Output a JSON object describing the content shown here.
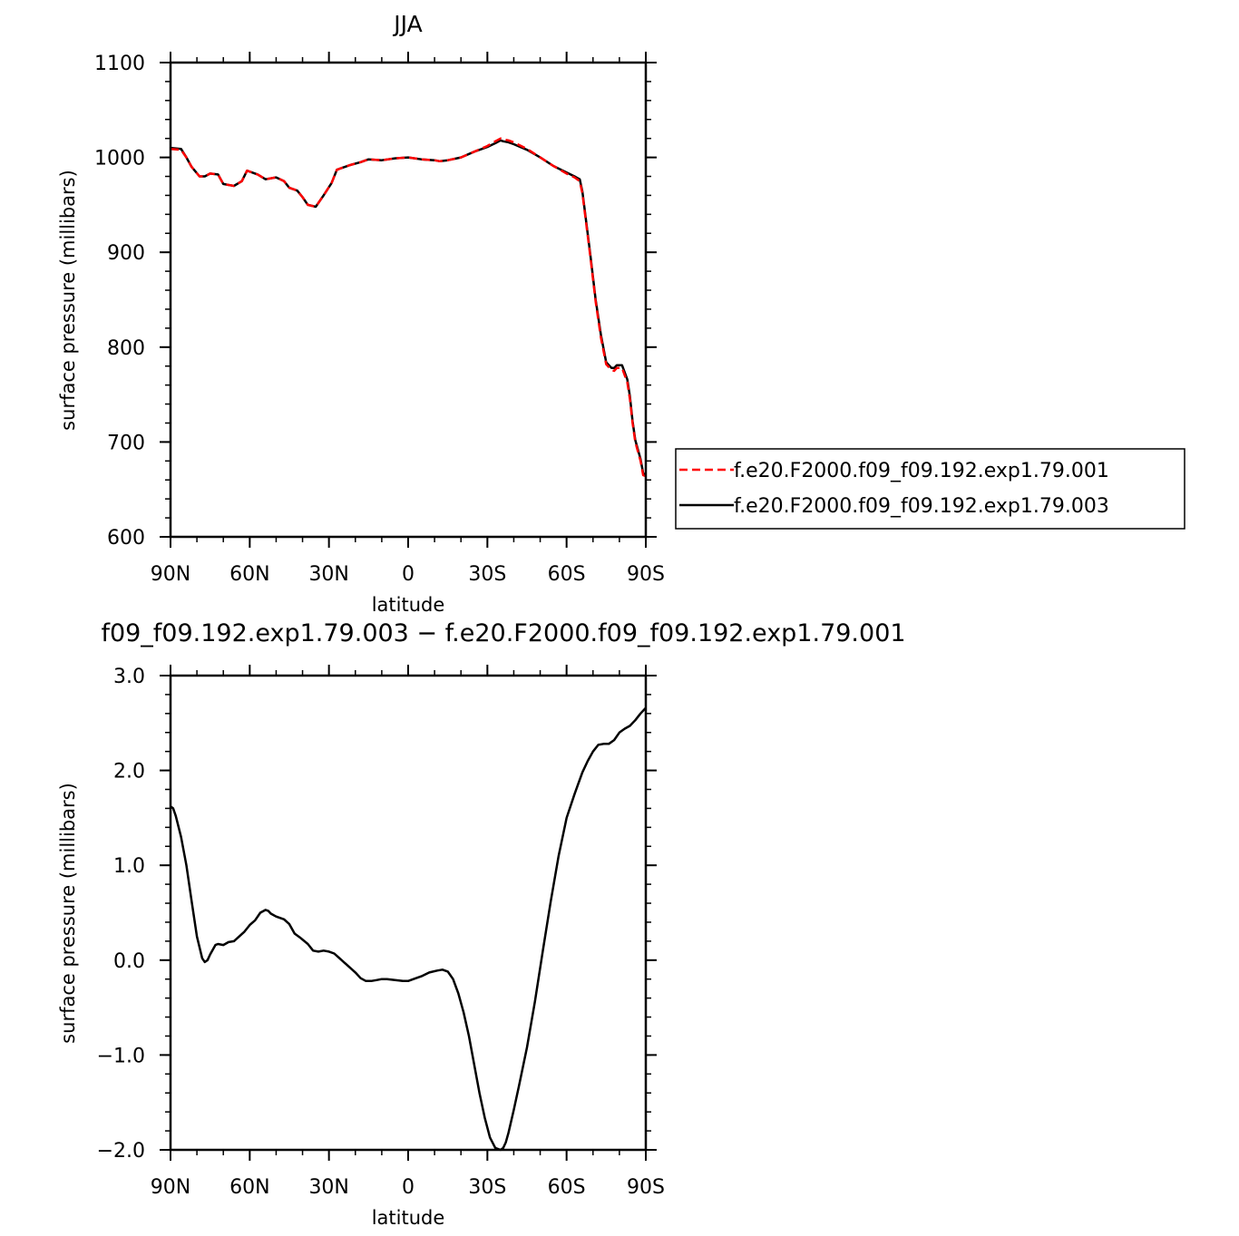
{
  "chart_data": [
    {
      "type": "line",
      "title": "JJA",
      "xlabel": "latitude",
      "ylabel": "surface pressure (millibars)",
      "xlim": [
        90,
        -90
      ],
      "ylim": [
        600,
        1100
      ],
      "xticks": [
        {
          "value": 90,
          "label": "90N"
        },
        {
          "value": 60,
          "label": "60N"
        },
        {
          "value": 30,
          "label": "30N"
        },
        {
          "value": 0,
          "label": "0"
        },
        {
          "value": -30,
          "label": "30S"
        },
        {
          "value": -60,
          "label": "60S"
        },
        {
          "value": -90,
          "label": "90S"
        }
      ],
      "yticks": [
        {
          "value": 600,
          "label": "600"
        },
        {
          "value": 700,
          "label": "700"
        },
        {
          "value": 800,
          "label": "800"
        },
        {
          "value": 900,
          "label": "900"
        },
        {
          "value": 1000,
          "label": "1000"
        },
        {
          "value": 1100,
          "label": "1100"
        }
      ],
      "legend_position": "right",
      "series": [
        {
          "name": "f.e20.F2000.f09_f09.192.exp1.79.001",
          "color": "#ff0000",
          "style": "dashed",
          "x": [
            90,
            86,
            84,
            82,
            79,
            77,
            75,
            72,
            70,
            66,
            63,
            61,
            57,
            54,
            50,
            47,
            45,
            42,
            40,
            38,
            35,
            32,
            29,
            27,
            25,
            22,
            18,
            15,
            10,
            5,
            0,
            -5,
            -10,
            -12,
            -15,
            -20,
            -25,
            -30,
            -33,
            -35,
            -36,
            -38,
            -40,
            -45,
            -50,
            -55,
            -60,
            -63,
            -65,
            -66,
            -67,
            -69,
            -71,
            -73,
            -75,
            -77,
            -78,
            -79,
            -81,
            -83,
            -84,
            -85,
            -86,
            -88,
            -89,
            -90
          ],
          "y": [
            1009,
            1008,
            1000,
            990,
            980,
            980,
            983,
            982,
            972,
            970,
            975,
            986,
            982,
            977,
            979,
            975,
            968,
            965,
            958,
            950,
            948,
            960,
            973,
            987,
            989,
            992,
            995,
            998,
            997,
            999,
            1000,
            998,
            997,
            996,
            997,
            1000,
            1006,
            1012,
            1017,
            1020,
            1019,
            1018,
            1016,
            1009,
            1000,
            991,
            983,
            979,
            975,
            962,
            940,
            895,
            848,
            810,
            782,
            776,
            775,
            778,
            778,
            763,
            745,
            720,
            700,
            680,
            665,
            664
          ]
        },
        {
          "name": "f.e20.F2000.f09_f09.192.exp1.79.003",
          "color": "#000000",
          "style": "solid",
          "x": [
            90,
            86,
            84,
            82,
            79,
            77,
            75,
            72,
            70,
            66,
            63,
            61,
            57,
            54,
            50,
            47,
            45,
            42,
            40,
            38,
            35,
            32,
            29,
            27,
            25,
            22,
            18,
            15,
            10,
            5,
            0,
            -5,
            -10,
            -12,
            -15,
            -20,
            -25,
            -30,
            -33,
            -35,
            -36,
            -38,
            -40,
            -45,
            -50,
            -55,
            -60,
            -63,
            -65,
            -66,
            -67,
            -69,
            -71,
            -73,
            -75,
            -77,
            -78,
            -79,
            -81,
            -83,
            -84,
            -85,
            -86,
            -88,
            -89,
            -90
          ],
          "y": [
            1010,
            1009,
            1000,
            990,
            980,
            980,
            983,
            982,
            972,
            970,
            975,
            986,
            982,
            977,
            979,
            975,
            968,
            965,
            958,
            950,
            948,
            960,
            973,
            987,
            989,
            992,
            995,
            998,
            997,
            999,
            1000,
            998,
            997,
            996,
            997,
            1000,
            1006,
            1011,
            1015,
            1018,
            1017,
            1016,
            1014,
            1008,
            1000,
            991,
            984,
            980,
            977,
            964,
            942,
            897,
            850,
            813,
            784,
            778,
            778,
            781,
            781,
            766,
            748,
            722,
            702,
            682,
            667,
            666
          ]
        }
      ]
    },
    {
      "type": "line",
      "title": "f09_f09.192.exp1.79.003 − f.e20.F2000.f09_f09.192.exp1.79.001",
      "xlabel": "latitude",
      "ylabel": "surface pressure (millibars)",
      "xlim": [
        90,
        -90
      ],
      "ylim": [
        -2.0,
        3.0
      ],
      "xticks": [
        {
          "value": 90,
          "label": "90N"
        },
        {
          "value": 60,
          "label": "60N"
        },
        {
          "value": 30,
          "label": "30N"
        },
        {
          "value": 0,
          "label": "0"
        },
        {
          "value": -30,
          "label": "30S"
        },
        {
          "value": -60,
          "label": "60S"
        },
        {
          "value": -90,
          "label": "90S"
        }
      ],
      "yticks": [
        {
          "value": -2.0,
          "label": "−2.0"
        },
        {
          "value": -1.0,
          "label": "−1.0"
        },
        {
          "value": 0.0,
          "label": "0.0"
        },
        {
          "value": 1.0,
          "label": "1.0"
        },
        {
          "value": 2.0,
          "label": "2.0"
        },
        {
          "value": 3.0,
          "label": "3.0"
        }
      ],
      "series": [
        {
          "color": "#000000",
          "style": "solid",
          "x": [
            90,
            89,
            88,
            86,
            84,
            82,
            80,
            78,
            77,
            76,
            75,
            73,
            72,
            70,
            68,
            66,
            64,
            62,
            60,
            58,
            56,
            54,
            53,
            52,
            50,
            47,
            45,
            43,
            41,
            38,
            36,
            34,
            32,
            30,
            28,
            26,
            24,
            22,
            20,
            18,
            16,
            14,
            12,
            10,
            8,
            5,
            2,
            0,
            -2,
            -5,
            -8,
            -11,
            -13,
            -15,
            -17,
            -19,
            -21,
            -23,
            -25,
            -27,
            -29,
            -31,
            -33,
            -35,
            -36,
            -37,
            -38,
            -40,
            -42,
            -45,
            -48,
            -51,
            -54,
            -57,
            -60,
            -63,
            -66,
            -68,
            -70,
            -72,
            -74,
            -76,
            -78,
            -80,
            -82,
            -84,
            -86,
            -88,
            -90
          ],
          "y": [
            1.62,
            1.6,
            1.52,
            1.3,
            1.0,
            0.62,
            0.25,
            0.02,
            -0.02,
            0.0,
            0.06,
            0.16,
            0.17,
            0.16,
            0.19,
            0.2,
            0.25,
            0.3,
            0.37,
            0.42,
            0.5,
            0.53,
            0.52,
            0.49,
            0.46,
            0.43,
            0.38,
            0.28,
            0.24,
            0.17,
            0.1,
            0.09,
            0.1,
            0.09,
            0.07,
            0.02,
            -0.03,
            -0.08,
            -0.13,
            -0.19,
            -0.22,
            -0.22,
            -0.21,
            -0.2,
            -0.2,
            -0.21,
            -0.22,
            -0.22,
            -0.2,
            -0.17,
            -0.13,
            -0.11,
            -0.1,
            -0.12,
            -0.2,
            -0.35,
            -0.55,
            -0.8,
            -1.1,
            -1.4,
            -1.66,
            -1.87,
            -1.98,
            -2.0,
            -1.98,
            -1.92,
            -1.82,
            -1.58,
            -1.32,
            -0.92,
            -0.44,
            0.1,
            0.62,
            1.1,
            1.5,
            1.75,
            1.98,
            2.1,
            2.2,
            2.27,
            2.28,
            2.28,
            2.32,
            2.4,
            2.44,
            2.47,
            2.53,
            2.6,
            2.66
          ]
        }
      ]
    }
  ]
}
